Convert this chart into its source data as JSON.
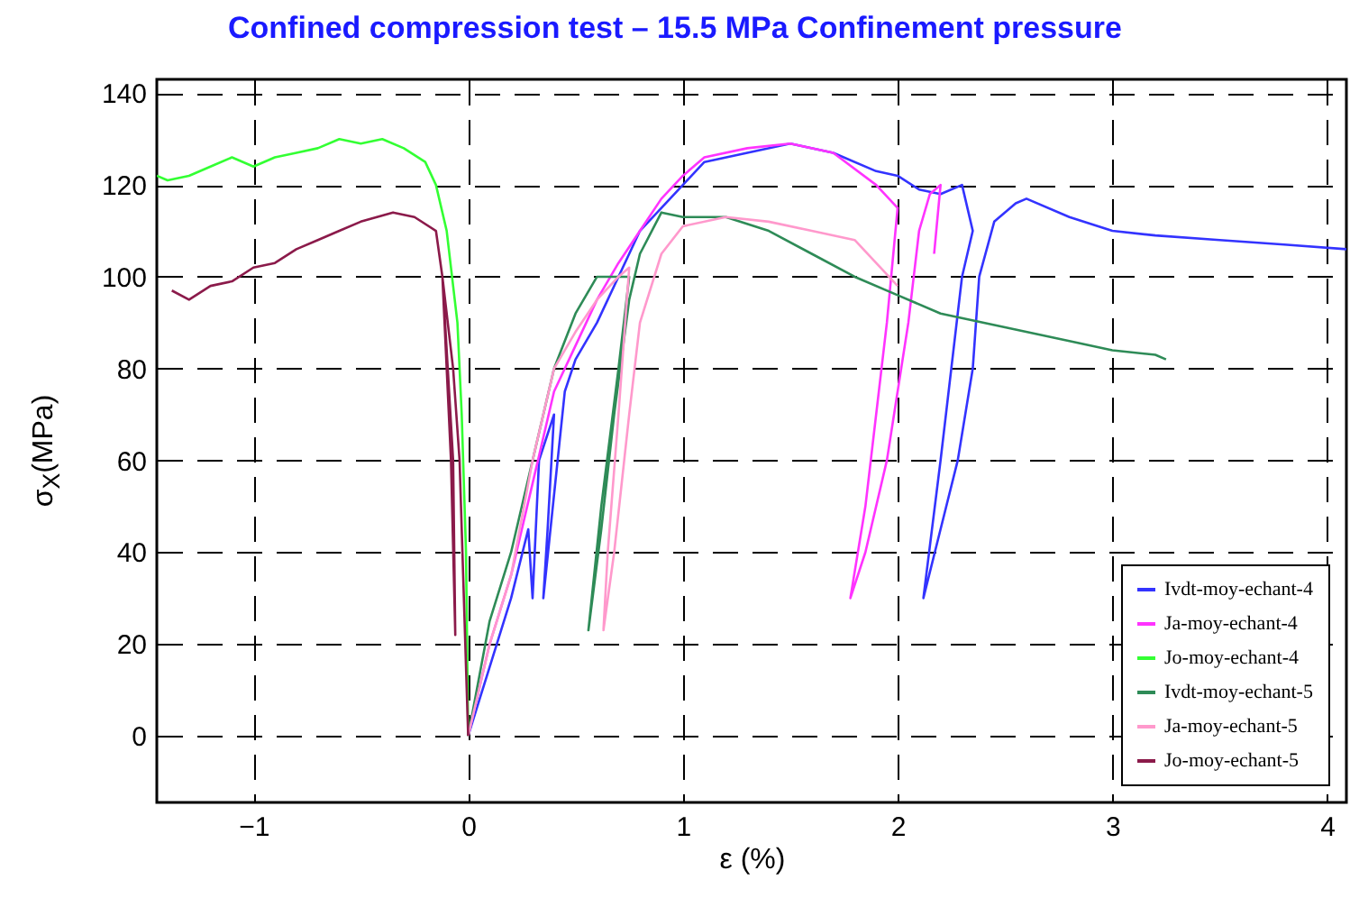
{
  "chart_data": {
    "type": "line",
    "title": "Confined compression test – 15.5 MPa Confinement pressure",
    "xlabel": "ε (%)",
    "ylabel": "σ$_{X}$(MPa)",
    "xlim": [
      -1.45,
      4.09
    ],
    "ylim": [
      -14.5,
      143
    ],
    "xticks": [
      -1,
      0,
      1,
      2,
      3,
      4
    ],
    "yticks": [
      0,
      20,
      40,
      60,
      80,
      100,
      120,
      140
    ],
    "grid": true,
    "legend": "bottom right",
    "series": [
      {
        "name": "Ivdt-moy-echant-4",
        "color": "#3333ff",
        "x": [
          0,
          0.1,
          0.2,
          0.28,
          0.3,
          0.33,
          0.4,
          0.37,
          0.35,
          0.45,
          0.5,
          0.6,
          0.7,
          0.8,
          0.9,
          1.0,
          1.1,
          1.3,
          1.5,
          1.7,
          1.9,
          2.0,
          2.1,
          2.2,
          2.3,
          2.35,
          2.3,
          2.25,
          2.2,
          2.12,
          2.2,
          2.28,
          2.35,
          2.38,
          2.45,
          2.55,
          2.6,
          2.8,
          3.0,
          3.2,
          3.5,
          3.8,
          4.09
        ],
        "values": [
          0,
          15,
          30,
          45,
          30,
          60,
          70,
          45,
          30,
          75,
          82,
          90,
          100,
          110,
          115,
          120,
          125,
          127,
          129,
          127,
          123,
          122,
          119,
          118,
          120,
          110,
          100,
          80,
          60,
          30,
          45,
          60,
          80,
          100,
          112,
          116,
          117,
          113,
          110,
          109,
          108,
          107,
          106
        ]
      },
      {
        "name": "Ja-moy-echant-4",
        "color": "#ff33ff",
        "x": [
          0,
          0.1,
          0.2,
          0.3,
          0.4,
          0.5,
          0.6,
          0.7,
          0.8,
          0.9,
          1.0,
          1.1,
          1.3,
          1.5,
          1.7,
          1.9,
          2.0,
          1.95,
          1.85,
          1.78,
          1.85,
          1.95,
          2.05,
          2.1,
          2.15,
          2.2,
          2.17
        ],
        "values": [
          0,
          20,
          35,
          55,
          75,
          85,
          95,
          103,
          110,
          117,
          122,
          126,
          128,
          129,
          127,
          120,
          115,
          90,
          50,
          30,
          40,
          60,
          90,
          110,
          118,
          120,
          105
        ]
      },
      {
        "name": "Jo-moy-echant-4",
        "color": "#33ff33",
        "x": [
          0,
          -0.01,
          -0.03,
          -0.05,
          -0.1,
          -0.15,
          -0.2,
          -0.3,
          -0.4,
          -0.5,
          -0.6,
          -0.7,
          -0.8,
          -0.9,
          -1.0,
          -1.1,
          -1.2,
          -1.3,
          -1.4,
          -1.45
        ],
        "values": [
          0,
          40,
          70,
          90,
          110,
          120,
          125,
          128,
          130,
          129,
          130,
          128,
          127,
          126,
          124,
          126,
          124,
          122,
          121,
          122
        ]
      },
      {
        "name": "Ivdt-moy-echant-5",
        "color": "#2e8b57",
        "x": [
          0,
          0.1,
          0.2,
          0.25,
          0.4,
          0.5,
          0.6,
          0.75,
          0.7,
          0.62,
          0.56,
          0.62,
          0.68,
          0.75,
          0.8,
          0.9,
          1.0,
          1.2,
          1.4,
          1.6,
          1.8,
          2.0,
          2.2,
          2.5,
          2.8,
          3.0,
          3.2,
          3.25
        ],
        "values": [
          0,
          25,
          40,
          50,
          80,
          92,
          100,
          100,
          80,
          50,
          23,
          45,
          70,
          95,
          105,
          114,
          113,
          113,
          110,
          105,
          100,
          96,
          92,
          89,
          86,
          84,
          83,
          82
        ]
      },
      {
        "name": "Ja-moy-echant-5",
        "color": "#ff99cc",
        "x": [
          0,
          0.1,
          0.2,
          0.3,
          0.4,
          0.5,
          0.6,
          0.7,
          0.75,
          0.7,
          0.65,
          0.63,
          0.68,
          0.75,
          0.8,
          0.9,
          1.0,
          1.2,
          1.4,
          1.6,
          1.8,
          1.9,
          2.0
        ],
        "values": [
          0,
          20,
          35,
          60,
          80,
          88,
          95,
          100,
          102,
          70,
          40,
          23,
          40,
          70,
          90,
          105,
          111,
          113,
          112,
          110,
          108,
          103,
          98
        ]
      },
      {
        "name": "Jo-moy-echant-5",
        "color": "#8b1a4a",
        "x": [
          0,
          -0.02,
          -0.04,
          -0.07,
          -0.12,
          -0.07,
          -0.06,
          -0.08,
          -0.12,
          -0.15,
          -0.25,
          -0.35,
          -0.5,
          -0.6,
          -0.7,
          -0.8,
          -0.9,
          -1.0,
          -1.1,
          -1.2,
          -1.3,
          -1.38
        ],
        "values": [
          0,
          30,
          60,
          80,
          100,
          60,
          22,
          60,
          100,
          110,
          113,
          114,
          112,
          110,
          108,
          106,
          103,
          102,
          99,
          98,
          95,
          97
        ]
      }
    ]
  }
}
